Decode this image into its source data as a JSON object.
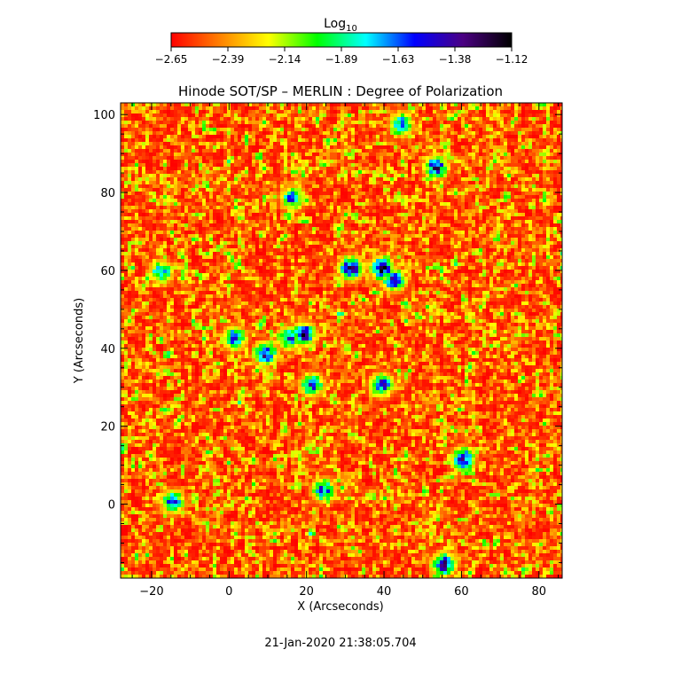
{
  "chart_data": {
    "type": "heatmap",
    "title": "Hinode SOT/SP – MERLIN : Degree of Polarization",
    "xlabel": "X (Arcseconds)",
    "ylabel": "Y (Arcseconds)",
    "xlim": [
      -28,
      86
    ],
    "ylim": [
      -19,
      103
    ],
    "x_ticks": [
      -20,
      0,
      20,
      40,
      60,
      80
    ],
    "y_ticks": [
      0,
      20,
      40,
      60,
      80,
      100
    ],
    "colorbar": {
      "label": "Log",
      "label_subscript": "10",
      "range": [
        -2.65,
        -1.12
      ],
      "ticks": [
        "-2.65",
        "-2.39",
        "-2.14",
        "-1.89",
        "-1.63",
        "-1.38",
        "-1.12"
      ],
      "colors": [
        "#ff0000",
        "#ff8000",
        "#ffff00",
        "#00ff00",
        "#00ffff",
        "#0000ff",
        "#4b0082",
        "#000000"
      ]
    },
    "grid": false,
    "features": [
      {
        "x": 31,
        "y": 61,
        "value": -1.2
      },
      {
        "x": 39,
        "y": 61,
        "value": -1.25
      },
      {
        "x": 42,
        "y": 58,
        "value": -1.4
      },
      {
        "x": 19,
        "y": 44,
        "value": -1.3
      },
      {
        "x": 9,
        "y": 39,
        "value": -1.4
      },
      {
        "x": 1,
        "y": 43,
        "value": -1.45
      },
      {
        "x": 39,
        "y": 31,
        "value": -1.45
      },
      {
        "x": 21,
        "y": 31,
        "value": -1.5
      },
      {
        "x": 53,
        "y": 87,
        "value": -1.4
      },
      {
        "x": 60,
        "y": 12,
        "value": -1.35
      },
      {
        "x": 55,
        "y": -15,
        "value": -1.3
      },
      {
        "x": 24,
        "y": 4,
        "value": -1.5
      },
      {
        "x": -15,
        "y": 1,
        "value": -1.5
      },
      {
        "x": 44,
        "y": 98,
        "value": -1.55
      },
      {
        "x": 16,
        "y": 79,
        "value": -1.55
      },
      {
        "x": -18,
        "y": 60,
        "value": -1.6
      },
      {
        "x": 15,
        "y": 43,
        "value": -1.5
      }
    ]
  },
  "footer": {
    "timestamp": "21-Jan-2020 21:38:05.704"
  }
}
